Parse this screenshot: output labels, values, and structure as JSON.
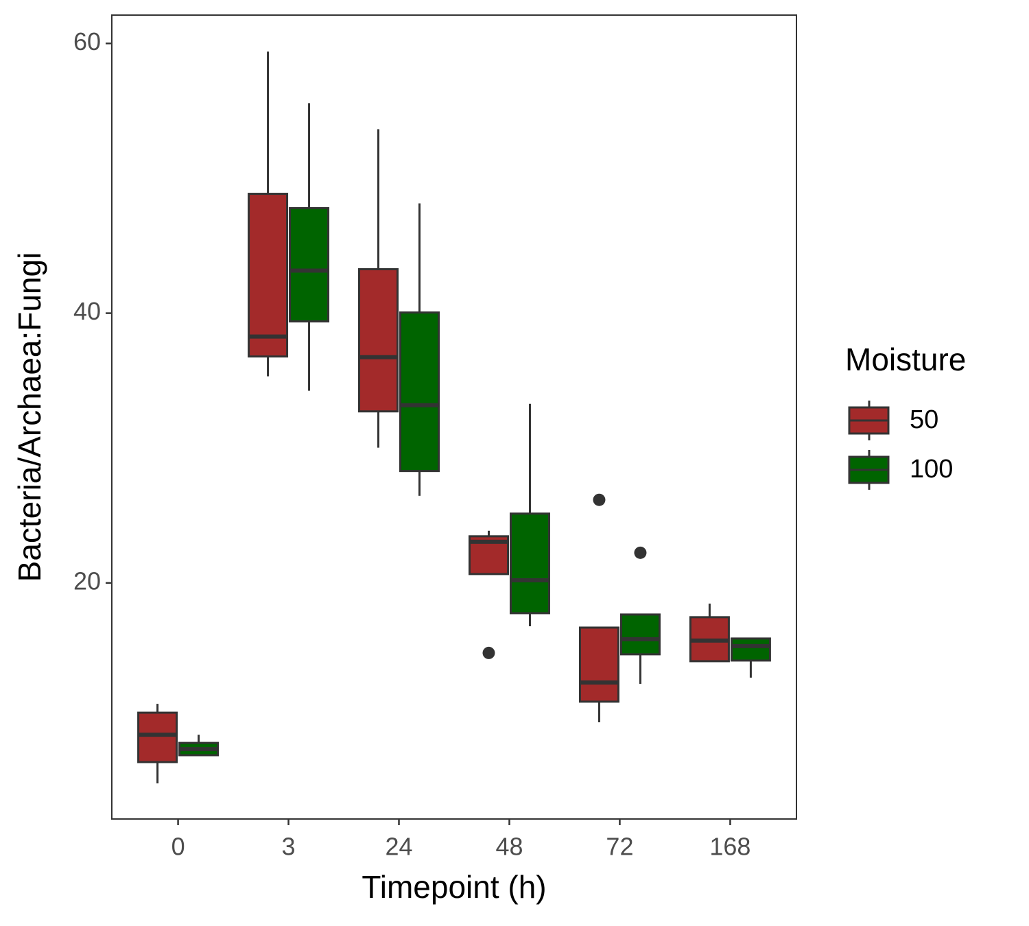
{
  "chart_data": {
    "type": "box",
    "x_label": "Timepoint (h)",
    "y_label": "Bacteria/Archaea:Fungi",
    "categories": [
      "0",
      "3",
      "24",
      "48",
      "72",
      "168"
    ],
    "ylim": [
      2.5,
      62.1
    ],
    "yticks": [
      20,
      40,
      60
    ],
    "legend_title": "Moisture",
    "legend_position": "right",
    "series": [
      {
        "name": "50",
        "color": "#a32a2a",
        "whisker_low": [
          5.14,
          35.32,
          30.03,
          20.66,
          9.67,
          14.2
        ],
        "q1": [
          6.72,
          36.79,
          32.72,
          20.66,
          11.2,
          14.2
        ],
        "median": [
          8.75,
          38.27,
          36.74,
          23.05,
          12.62,
          15.73
        ],
        "q3": [
          10.38,
          48.85,
          43.26,
          23.46,
          16.69,
          17.46
        ],
        "whisker_high": [
          11.04,
          59.39,
          53.64,
          23.87,
          16.69,
          18.47
        ],
        "outliers": [
          [],
          [],
          [],
          [
            14.81
          ],
          [
            26.16
          ],
          []
        ]
      },
      {
        "name": "100",
        "color": "#006400",
        "whisker_low": [
          7.23,
          34.25,
          26.46,
          16.79,
          12.52,
          12.98
        ],
        "q1": [
          7.23,
          39.39,
          28.3,
          17.76,
          14.71,
          14.25
        ],
        "median": [
          7.68,
          43.16,
          33.18,
          20.2,
          15.83,
          15.32
        ],
        "q3": [
          8.14,
          47.79,
          40.05,
          25.14,
          17.66,
          15.88
        ],
        "whisker_high": [
          8.75,
          55.57,
          48.14,
          33.28,
          17.66,
          15.88
        ],
        "outliers": [
          [],
          [],
          [],
          [],
          [
            22.24
          ],
          []
        ]
      }
    ]
  }
}
